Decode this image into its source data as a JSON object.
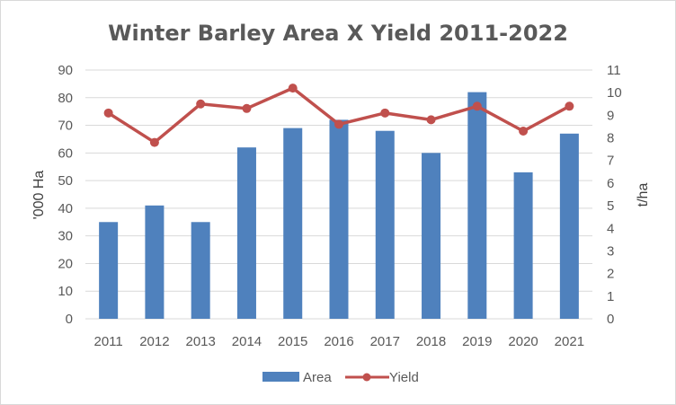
{
  "chart_data": {
    "type": "bar",
    "title": "Winter Barley Area X Yield 2011-2022",
    "categories": [
      "2011",
      "2012",
      "2013",
      "2014",
      "2015",
      "2016",
      "2017",
      "2018",
      "2019",
      "2020",
      "2021"
    ],
    "series": [
      {
        "name": "Area",
        "type": "bar",
        "axis": "left",
        "color": "#4f81bd",
        "values": [
          35,
          41,
          35,
          62,
          69,
          72,
          68,
          60,
          82,
          53,
          67
        ]
      },
      {
        "name": "Yield",
        "type": "line",
        "axis": "right",
        "color": "#c0504d",
        "values": [
          9.1,
          7.8,
          9.5,
          9.3,
          10.2,
          8.6,
          9.1,
          8.8,
          9.4,
          8.3,
          9.4
        ]
      }
    ],
    "ylabel": "'000 Ha",
    "y2label": "t/ha",
    "ylim": [
      0,
      90
    ],
    "yticks": [
      "0",
      "10",
      "20",
      "30",
      "40",
      "50",
      "60",
      "70",
      "80",
      "90"
    ],
    "y2lim": [
      0,
      11
    ],
    "y2ticks": [
      "0",
      "1",
      "2",
      "3",
      "4",
      "5",
      "6",
      "7",
      "8",
      "9",
      "10",
      "11"
    ],
    "grid": true,
    "legend": "bottom"
  }
}
